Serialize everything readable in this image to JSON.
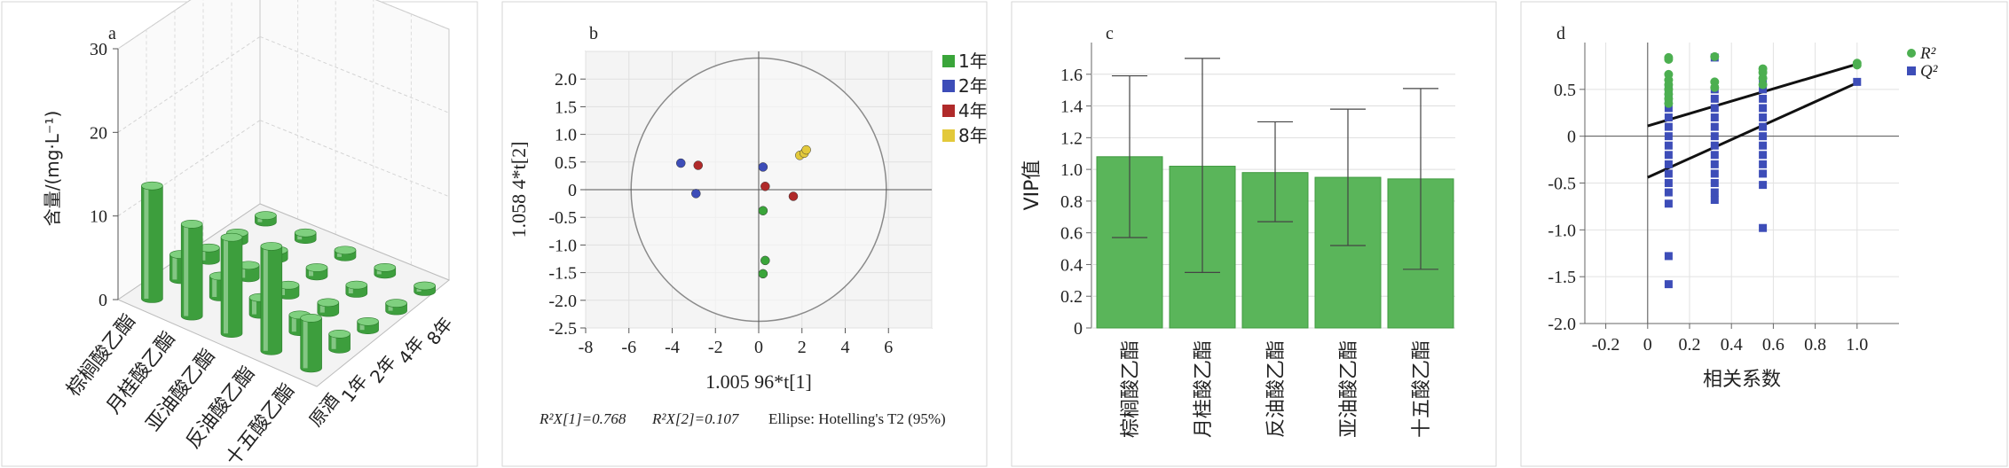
{
  "chart_data": [
    {
      "panel": "a",
      "type": "bar",
      "subtype": "3d-cylinder",
      "zlabel": "含量/(mg·L⁻¹)",
      "zlim": [
        0,
        30
      ],
      "zticks": [
        "0",
        "10",
        "20",
        "30"
      ],
      "compounds": [
        "棕榈酸乙酯",
        "月桂酸乙酯",
        "亚油酸乙酯",
        "反油酸乙酯",
        "十五酸乙酯"
      ],
      "years": [
        "原酒",
        "1年",
        "2年",
        "4年",
        "8年"
      ],
      "series": [
        {
          "name": "原酒",
          "values": [
            13.5,
            11.0,
            11.5,
            12.5,
            6.0
          ]
        },
        {
          "name": "1年",
          "values": [
            3.0,
            2.5,
            2.0,
            2.0,
            1.8
          ]
        },
        {
          "name": "2年",
          "values": [
            1.5,
            1.5,
            1.2,
            1.2,
            1.0
          ]
        },
        {
          "name": "4年",
          "values": [
            1.0,
            1.0,
            1.0,
            1.0,
            0.9
          ]
        },
        {
          "name": "8年",
          "values": [
            0.8,
            0.8,
            0.8,
            0.8,
            0.7
          ]
        }
      ],
      "colors": {
        "bar_top": "#7fd07f",
        "bar_side": "#3d9e3d",
        "bar_light": "#bfe8bf"
      }
    },
    {
      "panel": "b",
      "type": "scatter",
      "xlabel": "1.005 96*t[1]",
      "ylabel": "1.058 4*t[2]",
      "xlim": [
        -8,
        8
      ],
      "ylim": [
        -2.5,
        2.5
      ],
      "xticks": [
        "-8",
        "-6",
        "-4",
        "-2",
        "0",
        "2",
        "4",
        "6"
      ],
      "yticks": [
        "2.0",
        "1.5",
        "1.0",
        "0.5",
        "0",
        "-0.5",
        "-1.0",
        "-1.5",
        "-2.0",
        "-2.5"
      ],
      "footer_parts": [
        "R²X[1]=0.768",
        "R²X[2]=0.107",
        "Ellipse: Hotelling's T2 (95%)"
      ],
      "ellipse": {
        "cx": 0,
        "cy": 0,
        "rx": 5.9,
        "ry": 2.38
      },
      "legend_position": "top-right",
      "series": [
        {
          "name": "1年",
          "color": "#3aa53a",
          "points": [
            [
              0.2,
              -0.38
            ],
            [
              0.3,
              -1.28
            ],
            [
              0.2,
              -1.52
            ]
          ]
        },
        {
          "name": "2年",
          "color": "#3d4db8",
          "points": [
            [
              -3.6,
              0.48
            ],
            [
              -2.9,
              -0.07
            ],
            [
              0.2,
              0.41
            ]
          ]
        },
        {
          "name": "4年",
          "color": "#b02a2a",
          "points": [
            [
              -2.8,
              0.44
            ],
            [
              0.3,
              0.06
            ],
            [
              1.6,
              -0.12
            ]
          ]
        },
        {
          "name": "8年",
          "color": "#e3c93a",
          "points": [
            [
              1.9,
              0.62
            ],
            [
              2.1,
              0.66
            ],
            [
              2.2,
              0.72
            ]
          ]
        }
      ]
    },
    {
      "panel": "c",
      "type": "bar",
      "ylabel": "VIP值",
      "ylim": [
        0,
        1.8
      ],
      "yticks": [
        "0",
        "0.2",
        "0.4",
        "0.6",
        "0.8",
        "1.0",
        "1.2",
        "1.4",
        "1.6"
      ],
      "categories": [
        "棕榈酸乙酯",
        "月桂酸乙酯",
        "反油酸乙酯",
        "亚油酸乙酯",
        "十五酸乙酯"
      ],
      "values": [
        1.08,
        1.02,
        0.98,
        0.95,
        0.94
      ],
      "err_low": [
        0.57,
        0.35,
        0.67,
        0.52,
        0.37
      ],
      "err_high": [
        1.59,
        1.7,
        1.3,
        1.38,
        1.51
      ],
      "colors": {
        "bar": "#5ab55a",
        "bar_edge": "#3f9a3f"
      }
    },
    {
      "panel": "d",
      "type": "scatter",
      "xlabel": "相关系数",
      "xlim": [
        -0.3,
        1.2
      ],
      "ylim": [
        -2.0,
        1.0
      ],
      "xticks": [
        "-0.2",
        "0",
        "0.2",
        "0.4",
        "0.6",
        "0.8",
        "1.0"
      ],
      "yticks": [
        "0.5",
        "0",
        "-0.5",
        "-1.0",
        "-1.5",
        "-2.0"
      ],
      "legend_position": "top-right",
      "series": [
        {
          "name": "R²",
          "color": "#4caf50",
          "points": [
            [
              0.1,
              0.84
            ],
            [
              0.1,
              0.82
            ],
            [
              0.1,
              0.66
            ],
            [
              0.1,
              0.6
            ],
            [
              0.1,
              0.55
            ],
            [
              0.1,
              0.5
            ],
            [
              0.1,
              0.45
            ],
            [
              0.1,
              0.4
            ],
            [
              0.1,
              0.35
            ],
            [
              0.32,
              0.85
            ],
            [
              0.32,
              0.58
            ],
            [
              0.32,
              0.52
            ],
            [
              0.55,
              0.72
            ],
            [
              0.55,
              0.68
            ],
            [
              0.55,
              0.62
            ],
            [
              0.55,
              0.55
            ],
            [
              1.0,
              0.78
            ],
            [
              1.0,
              0.76
            ]
          ]
        },
        {
          "name": "Q²",
          "color": "#3d4db8",
          "points": [
            [
              0.1,
              0.5
            ],
            [
              0.1,
              0.4
            ],
            [
              0.1,
              0.3
            ],
            [
              0.1,
              0.2
            ],
            [
              0.1,
              0.1
            ],
            [
              0.1,
              0.0
            ],
            [
              0.1,
              -0.1
            ],
            [
              0.1,
              -0.2
            ],
            [
              0.1,
              -0.3
            ],
            [
              0.1,
              -0.4
            ],
            [
              0.1,
              -0.5
            ],
            [
              0.1,
              -0.6
            ],
            [
              0.1,
              -0.72
            ],
            [
              0.1,
              -1.28
            ],
            [
              0.1,
              -1.58
            ],
            [
              0.32,
              0.84
            ],
            [
              0.32,
              0.5
            ],
            [
              0.32,
              0.4
            ],
            [
              0.32,
              0.3
            ],
            [
              0.32,
              0.2
            ],
            [
              0.32,
              0.1
            ],
            [
              0.32,
              0.0
            ],
            [
              0.32,
              -0.1
            ],
            [
              0.32,
              -0.2
            ],
            [
              0.32,
              -0.3
            ],
            [
              0.32,
              -0.4
            ],
            [
              0.32,
              -0.5
            ],
            [
              0.32,
              -0.6
            ],
            [
              0.32,
              -0.68
            ],
            [
              0.55,
              0.7
            ],
            [
              0.55,
              0.6
            ],
            [
              0.55,
              0.5
            ],
            [
              0.55,
              0.4
            ],
            [
              0.55,
              0.3
            ],
            [
              0.55,
              0.2
            ],
            [
              0.55,
              0.1
            ],
            [
              0.55,
              0.0
            ],
            [
              0.55,
              -0.1
            ],
            [
              0.55,
              -0.2
            ],
            [
              0.55,
              -0.3
            ],
            [
              0.55,
              -0.4
            ],
            [
              0.55,
              -0.52
            ],
            [
              0.55,
              -0.98
            ],
            [
              1.0,
              0.58
            ]
          ]
        }
      ],
      "lines": [
        {
          "name": "R²",
          "from": [
            0.0,
            0.11
          ],
          "to": [
            1.0,
            0.77
          ]
        },
        {
          "name": "Q²",
          "from": [
            0.0,
            -0.44
          ],
          "to": [
            1.0,
            0.57
          ]
        }
      ]
    }
  ]
}
